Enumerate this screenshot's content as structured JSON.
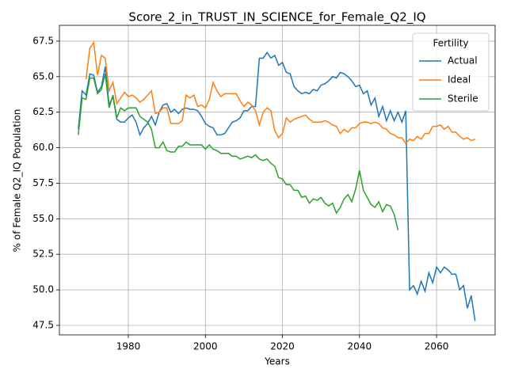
{
  "chart_data": {
    "type": "line",
    "title": "Score_2_in_TRUST_IN_SCIENCE_for_Female_Q2_IQ",
    "x_label": "Years",
    "y_label": "% of Female Q2_IQ Population",
    "legend_title": "Fertility",
    "legend_position": "upper right",
    "grid": true,
    "xlim": [
      1962.1,
      2075.2
    ],
    "ylim": [
      46.83,
      68.61
    ],
    "xticks": [
      1980,
      2000,
      2020,
      2040,
      2060
    ],
    "yticks": [
      47.5,
      {
        "value": 50,
        "label": "50.0"
      },
      52.5,
      {
        "value": 55,
        "label": "55.0"
      },
      57.5,
      {
        "value": 60,
        "label": "60.0"
      },
      62.5,
      {
        "value": 65,
        "label": "65.0"
      },
      67.5
    ],
    "x": [
      1967,
      1968,
      1969,
      1970,
      1971,
      1972,
      1973,
      1974,
      1975,
      1976,
      1977,
      1978,
      1979,
      1980,
      1981,
      1982,
      1983,
      1984,
      1985,
      1986,
      1987,
      1988,
      1989,
      1990,
      1991,
      1992,
      1993,
      1994,
      1995,
      1996,
      1997,
      1998,
      1999,
      2000,
      2001,
      2002,
      2003,
      2004,
      2005,
      2006,
      2007,
      2008,
      2009,
      2010,
      2011,
      2012,
      2013,
      2014,
      2015,
      2016,
      2017,
      2018,
      2019,
      2020,
      2021,
      2022,
      2023,
      2024,
      2025,
      2026,
      2027,
      2028,
      2029,
      2030,
      2031,
      2032,
      2033,
      2034,
      2035,
      2036,
      2037,
      2038,
      2039,
      2040,
      2041,
      2042,
      2043,
      2044,
      2045,
      2046,
      2047,
      2048,
      2049,
      2050,
      2051,
      2052,
      2053,
      2054,
      2055,
      2056,
      2057,
      2058,
      2059,
      2060,
      2061,
      2062,
      2063,
      2064,
      2065,
      2066,
      2067,
      2068,
      2069,
      2070
    ],
    "series": [
      {
        "name": "Actual",
        "color": "#1f77b4",
        "values": [
          61.3,
          64.0,
          63.7,
          65.2,
          65.1,
          63.9,
          64.3,
          65.7,
          63.0,
          63.6,
          62.0,
          61.8,
          61.8,
          62.1,
          62.3,
          61.8,
          60.9,
          61.4,
          61.7,
          62.2,
          61.6,
          62.5,
          63.0,
          63.1,
          62.5,
          62.7,
          62.4,
          62.7,
          62.8,
          62.7,
          62.7,
          62.6,
          62.2,
          61.7,
          61.5,
          61.4,
          60.9,
          60.9,
          61.0,
          61.4,
          61.8,
          61.9,
          62.1,
          62.6,
          62.6,
          62.9,
          62.9,
          66.3,
          66.3,
          66.7,
          66.3,
          66.5,
          65.8,
          66.0,
          65.3,
          65.2,
          64.3,
          64.0,
          63.8,
          63.9,
          63.8,
          64.1,
          64.0,
          64.4,
          64.5,
          64.7,
          65.0,
          64.9,
          65.3,
          65.2,
          65.0,
          64.7,
          64.3,
          64.4,
          63.8,
          64.0,
          63.0,
          63.5,
          62.2,
          62.9,
          61.9,
          62.6,
          61.9,
          62.5,
          61.8,
          62.6,
          50.0,
          50.3,
          49.7,
          50.6,
          49.9,
          51.2,
          50.5,
          51.6,
          51.2,
          51.6,
          51.4,
          51.1,
          51.1,
          50.0,
          50.3,
          48.7,
          49.6,
          47.8
        ]
      },
      {
        "name": "Ideal",
        "color": "#ff7f0e",
        "values": [
          null,
          null,
          64.8,
          67.0,
          67.4,
          65.1,
          66.5,
          66.3,
          64.0,
          64.6,
          63.1,
          63.5,
          63.9,
          63.6,
          63.7,
          63.5,
          63.2,
          63.4,
          63.7,
          64.0,
          62.4,
          62.5,
          62.8,
          62.8,
          61.7,
          61.7,
          61.7,
          61.9,
          63.7,
          63.5,
          63.7,
          62.9,
          63.0,
          62.8,
          63.4,
          64.6,
          64.0,
          63.6,
          63.8,
          63.8,
          63.8,
          63.8,
          63.3,
          62.9,
          63.2,
          63.0,
          62.6,
          61.6,
          62.5,
          62.8,
          62.6,
          61.2,
          60.7,
          61.0,
          62.1,
          61.8,
          62.0,
          62.1,
          62.2,
          62.3,
          62.0,
          61.8,
          61.8,
          61.8,
          61.9,
          61.8,
          61.6,
          61.5,
          61.0,
          61.3,
          61.1,
          61.4,
          61.4,
          61.7,
          61.8,
          61.8,
          61.7,
          61.8,
          61.7,
          61.4,
          61.3,
          61.0,
          60.9,
          60.7,
          60.7,
          60.3,
          60.6,
          60.5,
          60.8,
          60.6,
          61.0,
          61.0,
          61.5,
          61.5,
          61.6,
          61.3,
          61.5,
          61.1,
          61.1,
          60.8,
          60.6,
          60.7,
          60.5,
          60.6
        ]
      },
      {
        "name": "Sterile",
        "color": "#2ca02c",
        "values": [
          60.9,
          63.5,
          63.4,
          64.9,
          64.9,
          63.8,
          64.1,
          65.2,
          62.8,
          63.7,
          62.1,
          62.8,
          62.6,
          62.8,
          62.8,
          62.8,
          62.2,
          62.0,
          61.8,
          61.3,
          60.0,
          60.0,
          60.4,
          59.8,
          59.7,
          59.7,
          60.1,
          60.1,
          60.4,
          60.2,
          60.2,
          60.2,
          60.2,
          59.9,
          60.2,
          59.9,
          59.8,
          59.6,
          59.6,
          59.6,
          59.4,
          59.4,
          59.2,
          59.3,
          59.4,
          59.3,
          59.5,
          59.2,
          59.1,
          59.2,
          58.9,
          58.7,
          57.9,
          57.8,
          57.4,
          57.4,
          57.0,
          57.0,
          56.5,
          56.6,
          56.1,
          56.4,
          56.3,
          56.5,
          56.1,
          55.9,
          56.1,
          55.4,
          55.8,
          56.4,
          56.7,
          56.2,
          57.1,
          58.4,
          57.0,
          56.5,
          56.0,
          55.8,
          56.2,
          55.5,
          56.0,
          55.9,
          55.3,
          54.2,
          null,
          null,
          null,
          null,
          null,
          null,
          null,
          null,
          null,
          null,
          null,
          null,
          null,
          null,
          null,
          null,
          null,
          null,
          null,
          null
        ]
      }
    ]
  }
}
